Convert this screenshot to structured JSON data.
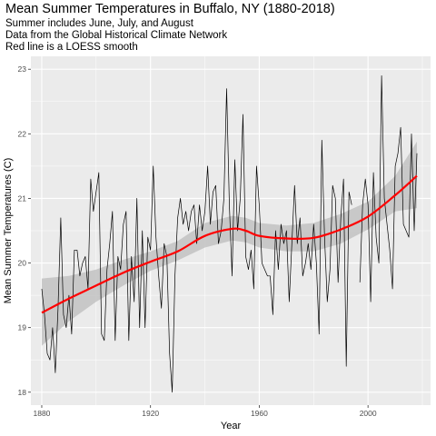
{
  "chart_data": {
    "type": "line",
    "title": "Mean Summer Temperatures in Buffalo, NY (1880-2018)",
    "subtitle": [
      "Summer includes June, July, and August",
      "Data from the Global Historical Climate Network",
      "Red line is a LOESS smooth"
    ],
    "xlabel": "Year",
    "ylabel": "Mean Summer Temperatures (C)",
    "xlim": [
      1876,
      2023
    ],
    "ylim": [
      17.8,
      23.2
    ],
    "xticks": [
      1880,
      1920,
      1960,
      2000
    ],
    "yticks": [
      18,
      19,
      20,
      21,
      22,
      23
    ],
    "grid": true,
    "colors": {
      "panel": "#ebebeb",
      "grid": "#ffffff",
      "line": "#000000",
      "smooth": "#ff0000",
      "band": "#c2c2c2"
    },
    "series": [
      {
        "values": [
          [
            1880,
            19.6
          ],
          [
            1881,
            19.2
          ],
          [
            1882,
            18.6
          ],
          [
            1883,
            18.5
          ],
          [
            1884,
            19.0
          ],
          [
            1885,
            18.3
          ],
          [
            1886,
            19.3
          ],
          [
            1887,
            20.7
          ],
          [
            1888,
            19.2
          ],
          [
            1889,
            19.0
          ],
          [
            1890,
            19.5
          ],
          [
            1891,
            18.9
          ],
          [
            1892,
            20.2
          ],
          [
            1893,
            20.2
          ],
          [
            1894,
            19.8
          ],
          [
            1895,
            20.0
          ],
          [
            1896,
            20.1
          ],
          [
            1897,
            19.6
          ],
          [
            1898,
            21.3
          ],
          [
            1899,
            20.8
          ],
          [
            1901,
            21.4
          ],
          [
            1902,
            18.9
          ],
          [
            1903,
            18.8
          ],
          [
            1904,
            19.9
          ],
          [
            1905,
            20.3
          ],
          [
            1906,
            20.8
          ],
          [
            1907,
            18.8
          ],
          [
            1908,
            20.1
          ],
          [
            1909,
            19.9
          ],
          [
            1910,
            20.6
          ],
          [
            1911,
            20.8
          ],
          [
            1912,
            18.8
          ],
          [
            1913,
            20.1
          ],
          [
            1914,
            19.4
          ],
          [
            1915,
            21.0
          ],
          [
            1916,
            19.0
          ],
          [
            1917,
            20.5
          ],
          [
            1918,
            19.0
          ],
          [
            1919,
            20.4
          ],
          [
            1920,
            20.2
          ],
          [
            1921,
            21.5
          ],
          [
            1922,
            20.4
          ],
          [
            1923,
            19.8
          ],
          [
            1924,
            19.3
          ],
          [
            1925,
            20.3
          ],
          [
            1926,
            20.1
          ],
          [
            1927,
            18.6
          ],
          [
            1928,
            18.0
          ],
          [
            1929,
            19.8
          ],
          [
            1930,
            20.7
          ],
          [
            1931,
            21.0
          ],
          [
            1932,
            20.6
          ],
          [
            1933,
            20.8
          ],
          [
            1934,
            20.5
          ],
          [
            1935,
            20.8
          ],
          [
            1936,
            20.9
          ],
          [
            1937,
            20.3
          ],
          [
            1938,
            20.9
          ],
          [
            1939,
            20.5
          ],
          [
            1940,
            20.8
          ],
          [
            1941,
            21.5
          ],
          [
            1942,
            20.6
          ],
          [
            1943,
            21.1
          ],
          [
            1944,
            21.2
          ],
          [
            1945,
            20.3
          ],
          [
            1946,
            20.5
          ],
          [
            1947,
            21.0
          ],
          [
            1948,
            22.7
          ],
          [
            1949,
            20.9
          ],
          [
            1950,
            19.8
          ],
          [
            1951,
            21.6
          ],
          [
            1952,
            20.5
          ],
          [
            1953,
            21.0
          ],
          [
            1954,
            22.3
          ],
          [
            1955,
            20.1
          ],
          [
            1956,
            19.9
          ],
          [
            1957,
            20.2
          ],
          [
            1958,
            19.6
          ],
          [
            1959,
            21.5
          ],
          [
            1960,
            20.9
          ],
          [
            1961,
            20.0
          ],
          [
            1962,
            19.9
          ],
          [
            1963,
            19.8
          ],
          [
            1964,
            19.8
          ],
          [
            1965,
            19.2
          ],
          [
            1966,
            20.5
          ],
          [
            1967,
            19.9
          ],
          [
            1968,
            20.6
          ],
          [
            1969,
            20.3
          ],
          [
            1970,
            20.5
          ],
          [
            1971,
            19.4
          ],
          [
            1972,
            20.3
          ],
          [
            1973,
            21.2
          ],
          [
            1974,
            20.3
          ],
          [
            1975,
            20.7
          ],
          [
            1976,
            19.8
          ],
          [
            1977,
            20.0
          ],
          [
            1978,
            20.3
          ],
          [
            1979,
            19.9
          ],
          [
            1980,
            20.6
          ],
          [
            1981,
            20.0
          ],
          [
            1982,
            18.9
          ],
          [
            1983,
            21.9
          ],
          [
            1984,
            20.4
          ],
          [
            1985,
            19.4
          ],
          [
            1986,
            19.9
          ],
          [
            1987,
            21.2
          ],
          [
            1988,
            21.0
          ],
          [
            1989,
            19.7
          ],
          [
            1990,
            20.7
          ],
          [
            1991,
            21.3
          ],
          [
            1992,
            18.4
          ],
          [
            1993,
            21.1
          ],
          [
            1994,
            20.9
          ]
        ]
      },
      {
        "values": [
          [
            1997,
            19.7
          ],
          [
            1998,
            20.9
          ],
          [
            1999,
            21.3
          ],
          [
            2000,
            20.9
          ],
          [
            2001,
            19.4
          ],
          [
            2002,
            21.4
          ],
          [
            2003,
            20.4
          ],
          [
            2004,
            20.0
          ],
          [
            2005,
            22.9
          ],
          [
            2006,
            21.0
          ],
          [
            2007,
            20.6
          ],
          [
            2008,
            20.2
          ],
          [
            2009,
            19.6
          ],
          [
            2010,
            21.5
          ],
          [
            2011,
            21.7
          ],
          [
            2012,
            22.1
          ],
          [
            2013,
            20.6
          ],
          [
            2014,
            20.5
          ],
          [
            2015,
            20.4
          ],
          [
            2016,
            22.0
          ],
          [
            2017,
            20.5
          ],
          [
            2018,
            21.7
          ]
        ]
      }
    ],
    "smooth": {
      "x": [
        1880,
        1890,
        1900,
        1910,
        1920,
        1930,
        1940,
        1950,
        1955,
        1960,
        1970,
        1980,
        1990,
        2000,
        2010,
        2018
      ],
      "y": [
        19.23,
        19.45,
        19.65,
        19.85,
        20.02,
        20.18,
        20.42,
        20.53,
        20.5,
        20.42,
        20.38,
        20.39,
        20.52,
        20.72,
        21.05,
        21.35
      ],
      "lower": [
        18.72,
        19.1,
        19.4,
        19.65,
        19.88,
        20.04,
        20.24,
        20.35,
        20.32,
        20.24,
        20.18,
        20.18,
        20.3,
        20.52,
        20.8,
        20.85
      ],
      "upper": [
        19.76,
        19.8,
        19.9,
        20.05,
        20.18,
        20.34,
        20.62,
        20.73,
        20.7,
        20.62,
        20.58,
        20.62,
        20.76,
        20.95,
        21.35,
        21.88
      ]
    }
  }
}
